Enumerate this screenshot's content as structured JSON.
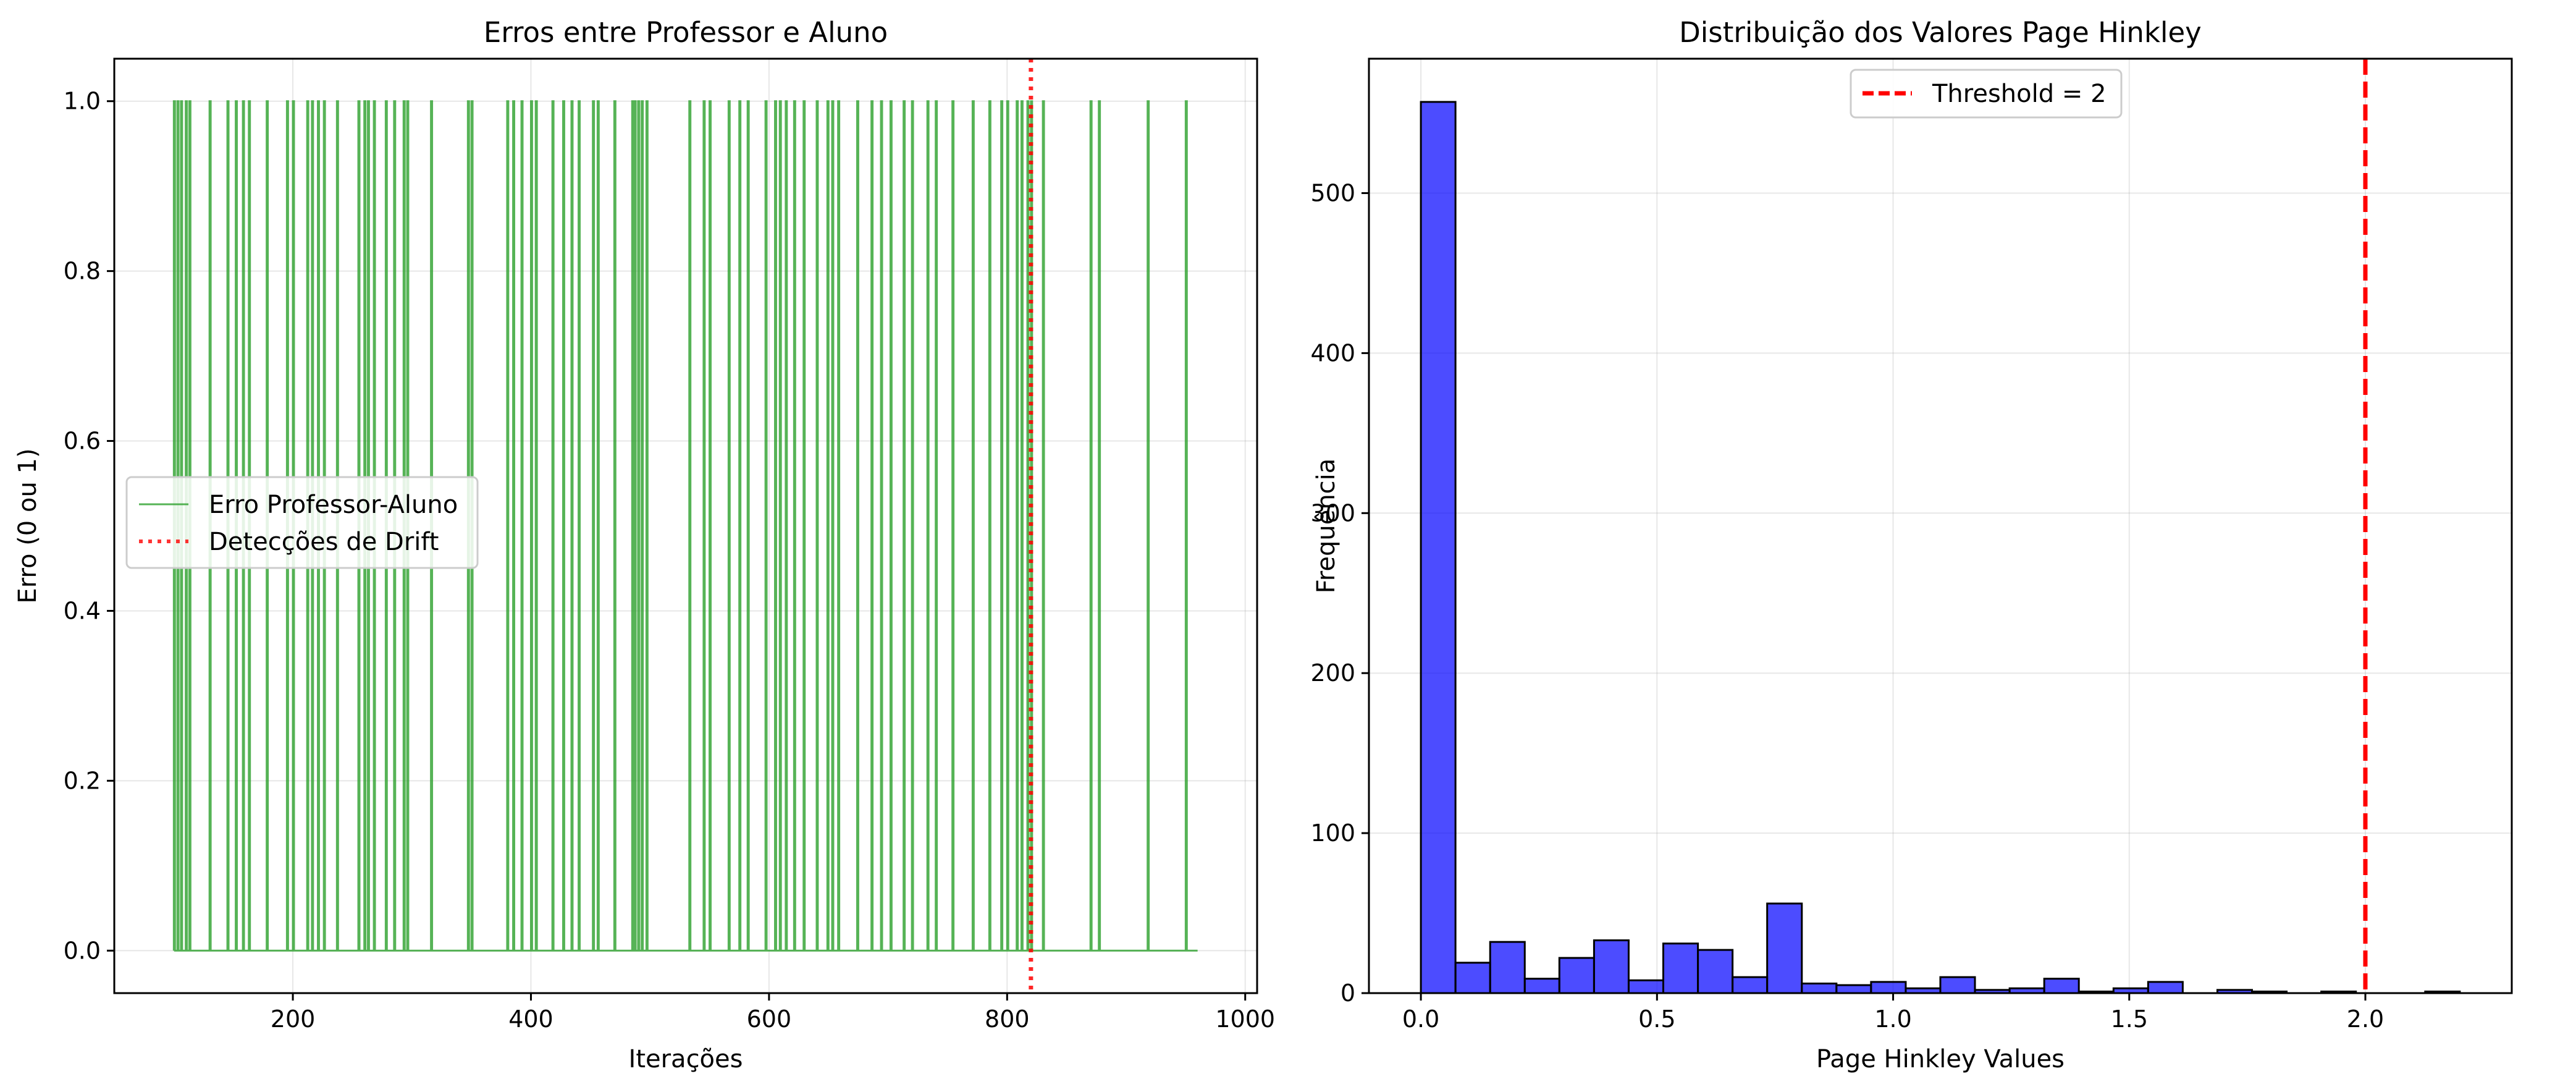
{
  "chart_data": [
    {
      "type": "line",
      "title": "Erros entre Professor e Aluno",
      "xlabel": "Iterações",
      "ylabel": "Erro (0 ou 1)",
      "xlim": [
        50,
        1010
      ],
      "ylim": [
        -0.05,
        1.05
      ],
      "x_ticks": [
        200,
        400,
        600,
        800,
        1000
      ],
      "y_ticks": [
        0.0,
        0.2,
        0.4,
        0.6,
        0.8,
        1.0
      ],
      "x_tick_labels": [
        "200",
        "400",
        "600",
        "800",
        "1000"
      ],
      "y_tick_labels": [
        "0.0",
        "0.2",
        "0.4",
        "0.6",
        "0.8",
        "1.0"
      ],
      "grid": true,
      "legend_position": "center-left",
      "series": [
        {
          "name": "Erro Professor-Aluno",
          "color": "#2ca02c",
          "x_range": [
            100,
            960
          ],
          "error_iterations": [
            100,
            103,
            106,
            110,
            113,
            130,
            145,
            152,
            158,
            163,
            178,
            195,
            200,
            212,
            216,
            221,
            226,
            237,
            255,
            260,
            263,
            268,
            278,
            285,
            293,
            296,
            316,
            347,
            350,
            380,
            385,
            392,
            400,
            404,
            418,
            427,
            434,
            440,
            452,
            456,
            470,
            485,
            487,
            490,
            493,
            497,
            533,
            545,
            550,
            566,
            575,
            582,
            597,
            605,
            609,
            614,
            621,
            629,
            640,
            649,
            653,
            658,
            674,
            686,
            694,
            702,
            713,
            720,
            733,
            740,
            754,
            771,
            785,
            795,
            800,
            808,
            812,
            817,
            820,
            830,
            870,
            877,
            918,
            950
          ]
        },
        {
          "name": "Detecções de Drift",
          "color": "#ff0000",
          "style": "dotted",
          "x_values": [
            820
          ]
        }
      ]
    },
    {
      "type": "bar",
      "title": "Distribuição dos Valores Page Hinkley",
      "xlabel": "Page Hinkley Values",
      "ylabel": "Frequência",
      "xlim": [
        -0.11,
        2.31
      ],
      "ylim": [
        0,
        584
      ],
      "x_ticks": [
        0.0,
        0.5,
        1.0,
        1.5,
        2.0
      ],
      "y_ticks": [
        0,
        100,
        200,
        300,
        400,
        500
      ],
      "x_tick_labels": [
        "0.0",
        "0.5",
        "1.0",
        "1.5",
        "2.0"
      ],
      "y_tick_labels": [
        "0",
        "100",
        "200",
        "300",
        "400",
        "500"
      ],
      "grid": true,
      "legend_position": "top-center",
      "bin_edges": [
        0.0,
        0.0733,
        0.1467,
        0.22,
        0.2933,
        0.3667,
        0.44,
        0.5133,
        0.5867,
        0.66,
        0.7333,
        0.8067,
        0.88,
        0.9533,
        1.0267,
        1.1,
        1.1733,
        1.2467,
        1.32,
        1.3933,
        1.4667,
        1.54,
        1.6133,
        1.6867,
        1.76,
        1.8333,
        1.9067,
        1.98,
        2.0533,
        2.1267,
        2.2
      ],
      "values": [
        557,
        19,
        32,
        9,
        22,
        33,
        8,
        31,
        27,
        10,
        56,
        6,
        5,
        7,
        3,
        10,
        2,
        3,
        9,
        1,
        3,
        7,
        0,
        2,
        1,
        0,
        1,
        0,
        0,
        1
      ],
      "bar_color": "#0000ff",
      "threshold": {
        "name": "Threshold = 2",
        "value": 2,
        "color": "#ff0000",
        "style": "dashed"
      }
    }
  ]
}
